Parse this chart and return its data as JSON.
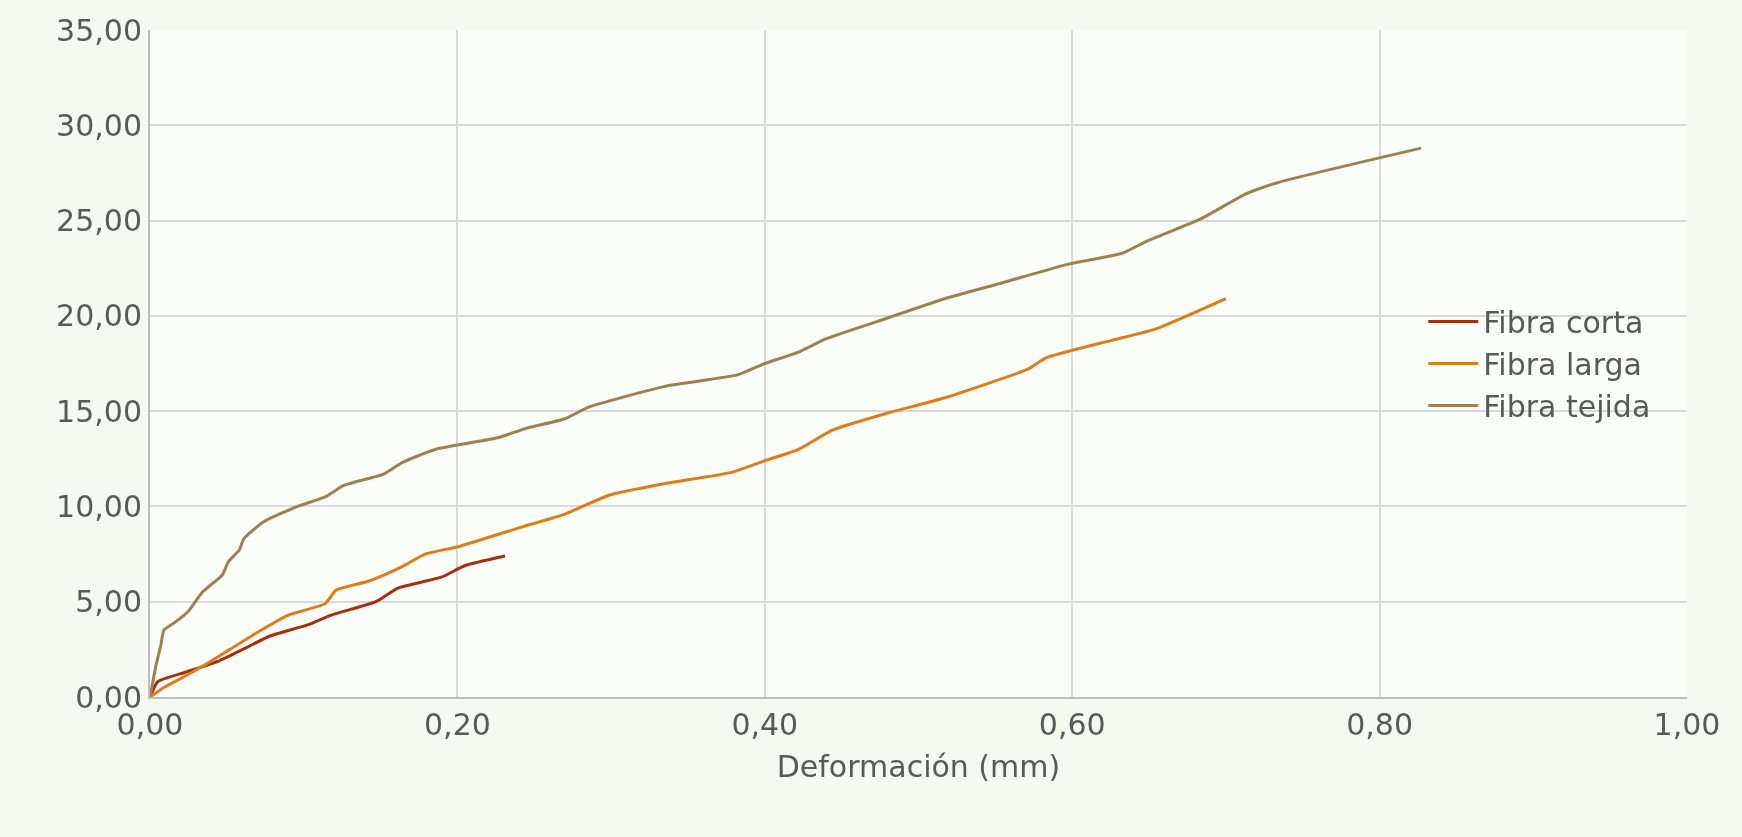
{
  "chart_data": {
    "type": "line",
    "xlabel": "Deformación (mm)",
    "xlim": [
      0,
      1
    ],
    "ylim": [
      0,
      35
    ],
    "xticks": [
      {
        "value": 0,
        "label": "0,00"
      },
      {
        "value": 0.2,
        "label": "0,20"
      },
      {
        "value": 0.4,
        "label": "0,40"
      },
      {
        "value": 0.6,
        "label": "0,60"
      },
      {
        "value": 0.8,
        "label": "0,80"
      },
      {
        "value": 1,
        "label": "1,00"
      }
    ],
    "yticks": [
      {
        "value": 0,
        "label": "0,00"
      },
      {
        "value": 5,
        "label": "5,00"
      },
      {
        "value": 10,
        "label": "10,00"
      },
      {
        "value": 15,
        "label": "15,00"
      },
      {
        "value": 20,
        "label": "20,00"
      },
      {
        "value": 25,
        "label": "25,00"
      },
      {
        "value": 30,
        "label": "30,00"
      },
      {
        "value": 35,
        "label": "35,00"
      }
    ],
    "grid": true,
    "legend": "right",
    "marker": "none",
    "line_style": "solid",
    "series": [
      {
        "name": "Fibra corta",
        "color": "#a5300f",
        "x": [
          0,
          0.005,
          0.023,
          0.045,
          0.063,
          0.078,
          0.103,
          0.118,
          0.147,
          0.161,
          0.19,
          0.205,
          0.231
        ],
        "values": [
          0,
          0.8,
          1.3,
          1.9,
          2.6,
          3.2,
          3.8,
          4.3,
          5.0,
          5.7,
          6.3,
          6.9,
          7.4
        ]
      },
      {
        "name": "Fibra larga",
        "color": "#e07b1a",
        "x": [
          0,
          0.009,
          0.023,
          0.038,
          0.052,
          0.07,
          0.09,
          0.114,
          0.121,
          0.143,
          0.163,
          0.179,
          0.201,
          0.241,
          0.27,
          0.299,
          0.335,
          0.379,
          0.4,
          0.422,
          0.444,
          0.48,
          0.517,
          0.571,
          0.583,
          0.625,
          0.654,
          0.7
        ],
        "values": [
          0,
          0.5,
          1.1,
          1.8,
          2.5,
          3.4,
          4.3,
          4.9,
          5.6,
          6.1,
          6.8,
          7.5,
          7.9,
          8.9,
          9.6,
          10.6,
          11.2,
          11.8,
          12.4,
          13.0,
          14.0,
          14.9,
          15.7,
          17.2,
          17.8,
          18.7,
          19.3,
          20.9
        ]
      },
      {
        "name": "Fibra tejida",
        "color": "#a08050",
        "x": [
          0,
          0.004,
          0.007,
          0.009,
          0.016,
          0.025,
          0.034,
          0.047,
          0.051,
          0.058,
          0.061,
          0.074,
          0.096,
          0.114,
          0.126,
          0.152,
          0.164,
          0.186,
          0.226,
          0.245,
          0.27,
          0.285,
          0.335,
          0.382,
          0.4,
          0.422,
          0.44,
          0.473,
          0.517,
          0.553,
          0.597,
          0.633,
          0.648,
          0.684,
          0.713,
          0.734,
          0.827
        ],
        "values": [
          0,
          1.7,
          2.7,
          3.5,
          3.9,
          4.5,
          5.5,
          6.4,
          7.1,
          7.7,
          8.3,
          9.2,
          10.0,
          10.5,
          11.1,
          11.7,
          12.3,
          13.0,
          13.6,
          14.1,
          14.6,
          15.2,
          16.3,
          16.9,
          17.5,
          18.1,
          18.8,
          19.7,
          20.9,
          21.7,
          22.7,
          23.3,
          23.9,
          25.1,
          26.4,
          27.0,
          28.8
        ]
      }
    ]
  }
}
